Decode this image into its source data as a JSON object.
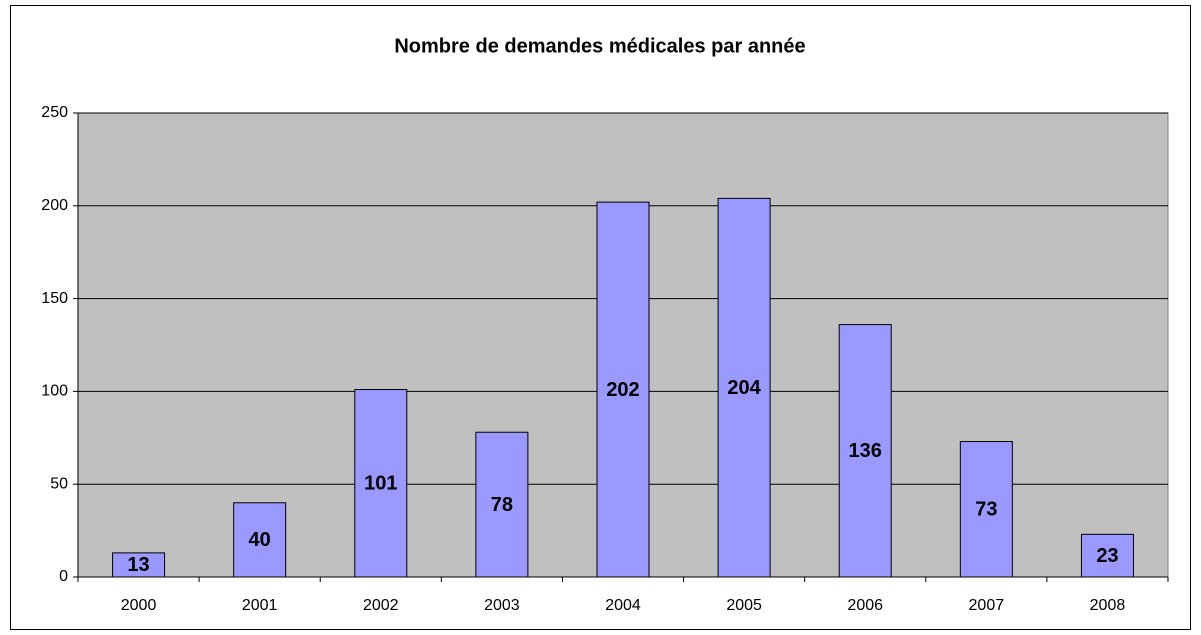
{
  "chart_data": {
    "type": "bar",
    "title": "Nombre de demandes médicales par année",
    "categories": [
      "2000",
      "2001",
      "2002",
      "2003",
      "2004",
      "2005",
      "2006",
      "2007",
      "2008"
    ],
    "values": [
      13,
      40,
      101,
      78,
      202,
      204,
      136,
      73,
      23
    ],
    "color": "#9999ff",
    "ylim": [
      0,
      250
    ],
    "yticks": [
      0,
      50,
      100,
      150,
      200,
      250
    ],
    "grid": true
  }
}
